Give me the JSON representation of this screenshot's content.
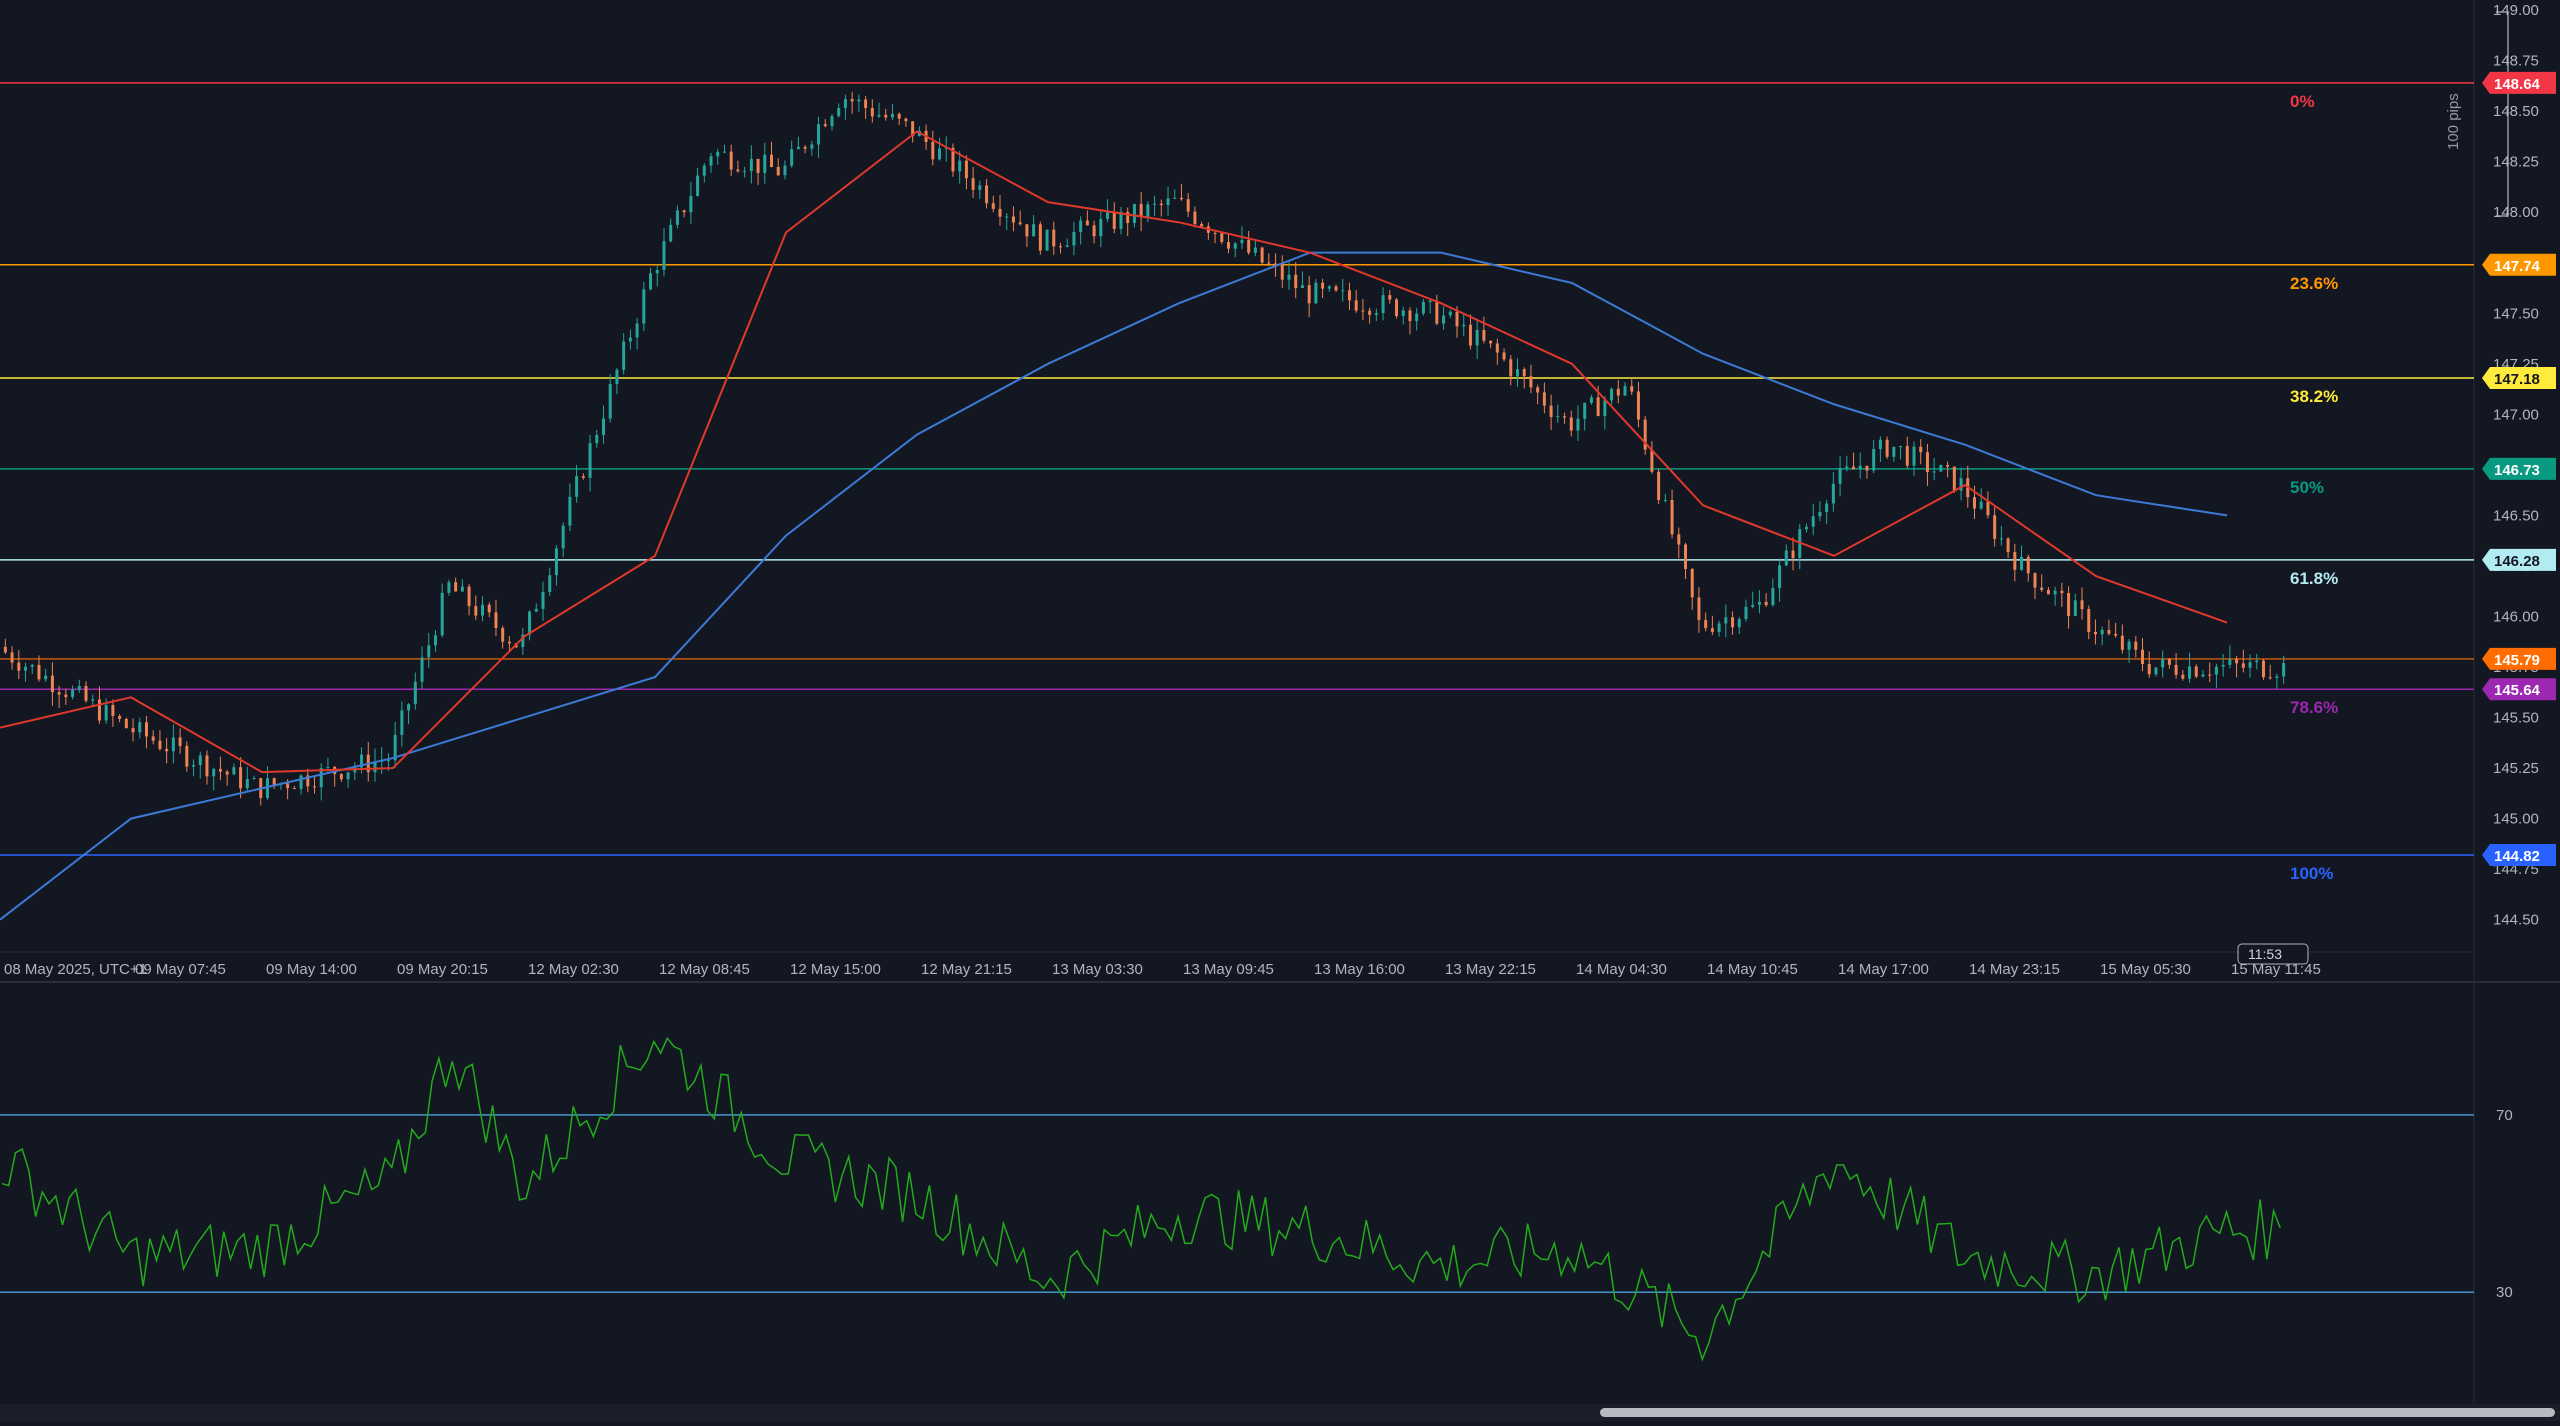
{
  "chart_data": [
    {
      "type": "candlestick",
      "x_axis_labels": [
        "08 May 2025, UTC+1",
        "09 May 07:45",
        "09 May 14:00",
        "09 May 20:15",
        "12 May 02:30",
        "12 May 08:45",
        "12 May 15:00",
        "12 May 21:15",
        "13 May 03:30",
        "13 May 09:45",
        "13 May 16:00",
        "13 May 22:15",
        "14 May 04:30",
        "14 May 10:45",
        "14 May 17:00",
        "14 May 23:15",
        "15 May 05:30",
        "15 May 11:45"
      ],
      "y_axis_ticks": [
        "149.00",
        "148.75",
        "148.50",
        "148.25",
        "148.00",
        "147.75",
        "147.50",
        "147.25",
        "147.00",
        "146.75",
        "146.50",
        "146.25",
        "146.00",
        "145.75",
        "145.50",
        "145.25",
        "145.00",
        "144.75",
        "144.50"
      ],
      "ylim": [
        144.34,
        149.05
      ],
      "price_anchors": [
        {
          "x": "08 May 2025, UTC+1",
          "y": 145.85
        },
        {
          "x": "09 May 07:45",
          "y": 145.45
        },
        {
          "x": "09 May 14:00",
          "y": 145.15
        },
        {
          "x": "09 May 20:15",
          "y": 145.3
        },
        {
          "x": "09 May 20:15",
          "y": 146.15
        },
        {
          "x": "12 May 02:30",
          "y": 145.85
        },
        {
          "x": "12 May 08:45",
          "y": 147.7
        },
        {
          "x": "12 May 08:45",
          "y": 148.3
        },
        {
          "x": "12 May 15:00",
          "y": 148.2
        },
        {
          "x": "12 May 15:00",
          "y": 148.58
        },
        {
          "x": "12 May 21:15",
          "y": 148.4
        },
        {
          "x": "13 May 03:30",
          "y": 147.85
        },
        {
          "x": "13 May 09:45",
          "y": 148.05
        },
        {
          "x": "13 May 16:00",
          "y": 147.6
        },
        {
          "x": "13 May 22:15",
          "y": 147.5
        },
        {
          "x": "13 May 22:15",
          "y": 147.3
        },
        {
          "x": "14 May 04:30",
          "y": 146.95
        },
        {
          "x": "14 May 04:30",
          "y": 147.15
        },
        {
          "x": "14 May 10:45",
          "y": 145.95
        },
        {
          "x": "14 May 10:45",
          "y": 146.05
        },
        {
          "x": "14 May 17:00",
          "y": 146.65
        },
        {
          "x": "14 May 17:00",
          "y": 146.85
        },
        {
          "x": "14 May 23:15",
          "y": 146.65
        },
        {
          "x": "14 May 23:15",
          "y": 146.25
        },
        {
          "x": "15 May 05:30",
          "y": 145.95
        },
        {
          "x": "15 May 05:30",
          "y": 145.75
        }
      ],
      "ma_fast_anchors": [
        {
          "x": "08 May 2025, UTC+1",
          "y": 145.45
        },
        {
          "x": "09 May 07:45",
          "y": 145.6
        },
        {
          "x": "09 May 14:00",
          "y": 145.23
        },
        {
          "x": "09 May 20:15",
          "y": 145.25
        },
        {
          "x": "12 May 02:30",
          "y": 145.9
        },
        {
          "x": "12 May 08:45",
          "y": 146.3
        },
        {
          "x": "12 May 15:00",
          "y": 147.9
        },
        {
          "x": "12 May 21:15",
          "y": 148.4
        },
        {
          "x": "13 May 03:30",
          "y": 148.05
        },
        {
          "x": "13 May 09:45",
          "y": 147.95
        },
        {
          "x": "13 May 16:00",
          "y": 147.8
        },
        {
          "x": "13 May 22:15",
          "y": 147.55
        },
        {
          "x": "14 May 04:30",
          "y": 147.25
        },
        {
          "x": "14 May 10:45",
          "y": 146.55
        },
        {
          "x": "14 May 17:00",
          "y": 146.3
        },
        {
          "x": "14 May 23:15",
          "y": 146.65
        },
        {
          "x": "15 May 05:30",
          "y": 146.2
        },
        {
          "x": "15 May 11:45",
          "y": 145.97
        }
      ],
      "ma_slow_anchors": [
        {
          "x": "08 May 2025, UTC+1",
          "y": 144.5
        },
        {
          "x": "09 May 07:45",
          "y": 145.0
        },
        {
          "x": "09 May 14:00",
          "y": 145.15
        },
        {
          "x": "09 May 20:15",
          "y": 145.3
        },
        {
          "x": "12 May 02:30",
          "y": 145.5
        },
        {
          "x": "12 May 08:45",
          "y": 145.7
        },
        {
          "x": "12 May 15:00",
          "y": 146.4
        },
        {
          "x": "12 May 21:15",
          "y": 146.9
        },
        {
          "x": "13 May 03:30",
          "y": 147.25
        },
        {
          "x": "13 May 09:45",
          "y": 147.55
        },
        {
          "x": "13 May 16:00",
          "y": 147.8
        },
        {
          "x": "13 May 22:15",
          "y": 147.8
        },
        {
          "x": "14 May 04:30",
          "y": 147.65
        },
        {
          "x": "14 May 10:45",
          "y": 147.3
        },
        {
          "x": "14 May 17:00",
          "y": 147.05
        },
        {
          "x": "14 May 23:15",
          "y": 146.85
        },
        {
          "x": "15 May 05:30",
          "y": 146.6
        },
        {
          "x": "15 May 11:45",
          "y": 146.5
        }
      ],
      "fib_levels": [
        {
          "label": "0%",
          "price": "148.64",
          "price_value": 148.64,
          "color": "#f23645"
        },
        {
          "label": "23.6%",
          "price": "147.74",
          "price_value": 147.74,
          "color": "#ff9800"
        },
        {
          "label": "38.2%",
          "price": "147.18",
          "price_value": 147.18,
          "color": "#ffeb3b"
        },
        {
          "label": "50%",
          "price": "146.73",
          "price_value": 146.73,
          "color": "#089981"
        },
        {
          "label": "61.8%",
          "price": "146.28",
          "price_value": 146.28,
          "color": "#b2ebf2"
        },
        {
          "label": "78.6%",
          "price": "145.64",
          "price_value": 145.64,
          "color": "#9c27b0"
        },
        {
          "label": "100%",
          "price": "144.82",
          "price_value": 144.82,
          "color": "#2962ff"
        }
      ],
      "current_price": {
        "price": "145.79",
        "price_value": 145.79,
        "color": "#ff6d00",
        "time": "11:53"
      },
      "range_annotation": "100 pips"
    },
    {
      "type": "line",
      "series": [
        {
          "name": "",
          "color": "#22ab1b"
        }
      ],
      "ylim": [
        5,
        100
      ],
      "y_axis_ticks": [
        "70",
        "30"
      ],
      "levels": [
        70,
        30
      ],
      "anchors": [
        {
          "x": "08 May 2025, UTC+1",
          "y": 60
        },
        {
          "x": "09 May 07:45",
          "y": 38
        },
        {
          "x": "09 May 14:00",
          "y": 40
        },
        {
          "x": "09 May 20:15",
          "y": 55
        },
        {
          "x": "09 May 20:15",
          "y": 85
        },
        {
          "x": "12 May 02:30",
          "y": 54
        },
        {
          "x": "12 May 08:45",
          "y": 88
        },
        {
          "x": "12 May 15:00",
          "y": 60
        },
        {
          "x": "12 May 21:15",
          "y": 52
        },
        {
          "x": "13 May 03:30",
          "y": 33
        },
        {
          "x": "13 May 09:45",
          "y": 48
        },
        {
          "x": "13 May 16:00",
          "y": 44
        },
        {
          "x": "13 May 22:15",
          "y": 36
        },
        {
          "x": "14 May 04:30",
          "y": 40
        },
        {
          "x": "14 May 10:45",
          "y": 20
        },
        {
          "x": "14 May 17:00",
          "y": 60
        },
        {
          "x": "14 May 23:15",
          "y": 38
        },
        {
          "x": "15 May 05:30",
          "y": 34
        },
        {
          "x": "15 May 11:45",
          "y": 44
        }
      ]
    }
  ]
}
